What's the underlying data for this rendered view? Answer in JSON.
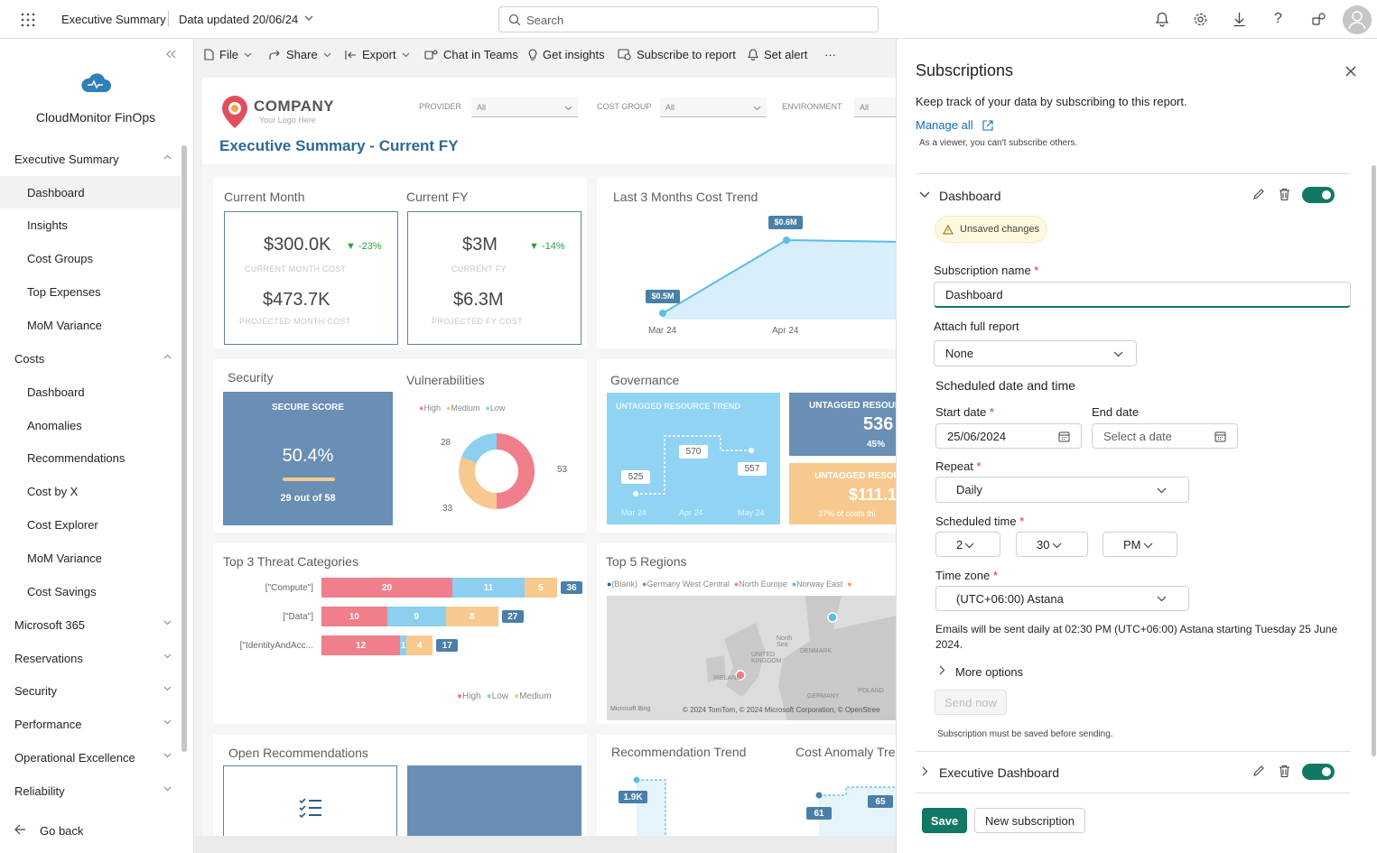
{
  "topbar": {
    "app_title": "Executive Summary",
    "data_updated": "Data updated 20/06/24",
    "search_placeholder": "Search"
  },
  "sidebar": {
    "brand": "CloudMonitor FinOps",
    "items": [
      {
        "label": "Executive Summary",
        "type": "section"
      },
      {
        "label": "Dashboard",
        "type": "sub",
        "active": true
      },
      {
        "label": "Insights",
        "type": "sub"
      },
      {
        "label": "Cost Groups",
        "type": "sub"
      },
      {
        "label": "Top Expenses",
        "type": "sub"
      },
      {
        "label": "MoM Variance",
        "type": "sub"
      },
      {
        "label": "Costs",
        "type": "section"
      },
      {
        "label": "Dashboard",
        "type": "sub"
      },
      {
        "label": "Anomalies",
        "type": "sub"
      },
      {
        "label": "Recommendations",
        "type": "sub"
      },
      {
        "label": "Cost by X",
        "type": "sub"
      },
      {
        "label": "Cost Explorer",
        "type": "sub"
      },
      {
        "label": "MoM Variance",
        "type": "sub"
      },
      {
        "label": "Cost Savings",
        "type": "sub"
      },
      {
        "label": "Microsoft 365",
        "type": "section"
      },
      {
        "label": "Reservations",
        "type": "section"
      },
      {
        "label": "Security",
        "type": "section"
      },
      {
        "label": "Performance",
        "type": "section"
      },
      {
        "label": "Operational Excellence",
        "type": "section"
      },
      {
        "label": "Reliability",
        "type": "section"
      }
    ],
    "go_back": "Go back"
  },
  "toolbar": {
    "file": "File",
    "share": "Share",
    "export": "Export",
    "chat": "Chat in Teams",
    "insights": "Get insights",
    "subscribe": "Subscribe to report",
    "alert": "Set alert",
    "more": "···"
  },
  "report": {
    "logo_name": "COMPANY",
    "logo_tagline": "Your Logo Here",
    "title": "Executive Summary - Current FY",
    "filters": {
      "provider_label": "PROVIDER",
      "provider_value": "All",
      "costgroup_label": "COST GROUP",
      "costgroup_value": "All",
      "env_label": "ENVIRONMENT",
      "env_value": "All"
    },
    "current_month": {
      "title": "Current Month",
      "value": "$300.0K",
      "delta": "-23%",
      "label": "CURRENT MONTH COST",
      "projected": "$473.7K",
      "projected_label": "PROJECTED MONTH COST"
    },
    "current_fy": {
      "title": "Current FY",
      "value": "$3M",
      "delta": "-14%",
      "label": "CURRENT FY",
      "projected": "$6.3M",
      "projected_label": "PROJECTED FY COST"
    },
    "trend": {
      "title": "Last 3 Months Cost Trend",
      "point1": "$0.5M",
      "point2": "$0.6M",
      "x1": "Mar 24",
      "x2": "Apr 24"
    },
    "security": {
      "title": "Security",
      "score_label": "SECURE SCORE",
      "score": "50.4%",
      "out_of": "29 out of 58"
    },
    "vulnerabilities": {
      "title": "Vulnerabilities",
      "legend": [
        "High",
        "Medium",
        "Low"
      ],
      "v_high": "53",
      "v_medium": "33",
      "v_low": "28"
    },
    "governance": {
      "title": "Governance",
      "trend_title": "UNTAGGED RESOURCE TREND",
      "p1": "525",
      "p2": "570",
      "p3": "557",
      "x1": "Mar 24",
      "x2": "Apr 24",
      "x3": "May 24",
      "untagged_label": "UNTAGGED RESOUR",
      "untagged_value": "536",
      "untagged_pct": "45%",
      "cost_label": "UNTAGGED RESOU",
      "cost_value": "$111.1",
      "cost_note": "37% of costs thi"
    },
    "threats": {
      "title": "Top 3 Threat Categories",
      "rows": [
        {
          "label": "[\"Compute\"]",
          "high": "20",
          "low": "11",
          "medium": "5",
          "total": "36"
        },
        {
          "label": "[\"Data\"]",
          "high": "10",
          "low": "9",
          "medium": "8",
          "total": "27"
        },
        {
          "label": "[\"IdentityAndAcc...",
          "high": "12",
          "low": "1",
          "medium": "4",
          "total": "17"
        }
      ],
      "legend": [
        "High",
        "Low",
        "Medium"
      ]
    },
    "regions": {
      "title": "Top 5 Regions",
      "legend": [
        "(Blank)",
        "Germany West Central",
        "North Europe",
        "Norway East"
      ],
      "map_labels": {
        "north_sea": "North Sea",
        "denmark": "DENMARK",
        "uk": "UNITED KINGDOM",
        "ireland": "IRELAND",
        "germany": "GERMANY",
        "poland": "POLAND"
      },
      "attribution": "© 2024 TomTom, © 2024 Microsoft Corporation, © OpenStree",
      "bing": "Microsoft Bing"
    },
    "open_recs": {
      "title": "Open Recommendations"
    },
    "rec_trend": {
      "title": "Recommendation Trend",
      "value": "1.9K"
    },
    "anomaly": {
      "title": "Cost Anomaly Tre",
      "v1": "61",
      "v2": "65"
    }
  },
  "panel": {
    "title": "Subscriptions",
    "description": "Keep track of your data by subscribing to this report.",
    "manage_all": "Manage all",
    "viewer_note": "As a viewer, you can't subscribe others.",
    "sub1": {
      "name": "Dashboard",
      "unsaved": "Unsaved changes",
      "name_label": "Subscription name",
      "name_value": "Dashboard",
      "attach_label": "Attach full report",
      "attach_value": "None",
      "schedule_heading": "Scheduled date and time",
      "start_label": "Start date",
      "start_value": "25/06/2024",
      "end_label": "End date",
      "end_placeholder": "Select a date",
      "repeat_label": "Repeat",
      "repeat_value": "Daily",
      "time_label": "Scheduled time",
      "hour": "2",
      "minute": "30",
      "ampm": "PM",
      "tz_label": "Time zone",
      "tz_value": "(UTC+06:00) Astana",
      "summary": "Emails will be sent daily at 02:30 PM (UTC+06:00) Astana starting Tuesday 25 June 2024.",
      "more_options": "More options",
      "send_now": "Send now",
      "send_note": "Subscription must be saved before sending."
    },
    "sub2": {
      "name": "Executive Dashboard"
    },
    "save": "Save",
    "new_subscription": "New subscription"
  },
  "colors": {
    "accent": "#117865",
    "kpi_border": "#5b84a8",
    "title_blue": "#2b6a94",
    "high": "#f07f8b",
    "medium": "#f7c98f",
    "low": "#8ccfee"
  }
}
